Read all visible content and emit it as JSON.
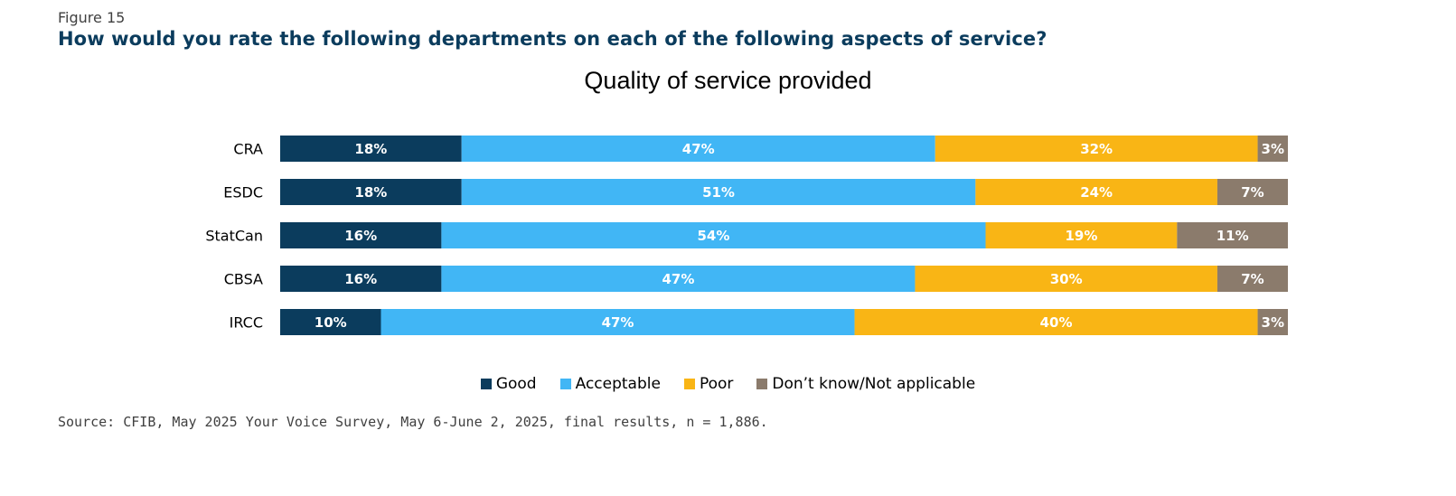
{
  "figure_label": "Figure 15",
  "question": "How would you rate the following departments on each of the following aspects of service?",
  "source": "Source: CFIB, May 2025 Your Voice Survey, May 6-June 2, 2025, final results, n = 1,886.",
  "chart_data": {
    "type": "bar",
    "orientation": "horizontal",
    "stacked": "100%",
    "title": "Quality of service provided",
    "categories": [
      "CRA",
      "ESDC",
      "StatCan",
      "CBSA",
      "IRCC"
    ],
    "series": [
      {
        "name": "Good",
        "color": "#0b3c5d",
        "values": [
          18,
          18,
          16,
          16,
          10
        ]
      },
      {
        "name": "Acceptable",
        "color": "#41b6f5",
        "values": [
          47,
          51,
          54,
          47,
          47
        ]
      },
      {
        "name": "Poor",
        "color": "#f9b515",
        "values": [
          32,
          24,
          19,
          30,
          40
        ]
      },
      {
        "name": "Don’t know/Not applicable",
        "color": "#8b7b6c",
        "values": [
          3,
          7,
          11,
          7,
          3
        ]
      }
    ],
    "value_suffix": "%",
    "legend_position": "bottom",
    "grid": false
  }
}
